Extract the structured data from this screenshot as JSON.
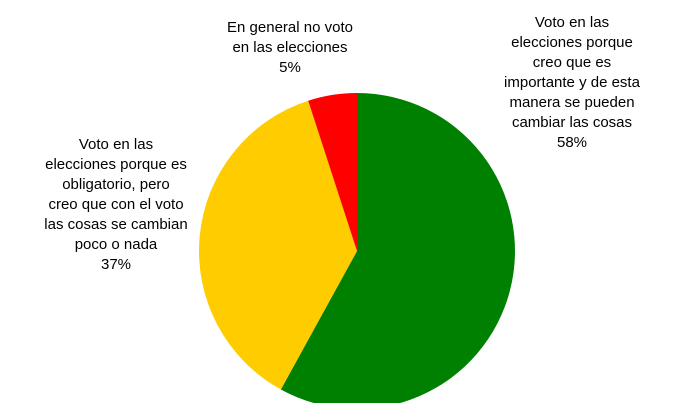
{
  "chart_data": {
    "type": "pie",
    "title": "",
    "start": "top, clockwise",
    "legend": "none",
    "slices": [
      {
        "label_lines": [
          "Voto en las",
          "elecciones porque",
          "creo que es",
          "importante y de esta",
          "manera se pueden",
          "cambiar las cosas"
        ],
        "value": 58,
        "value_label": "58%",
        "color": "#008000"
      },
      {
        "label_lines": [
          "Voto en las",
          "elecciones porque es",
          "obligatorio, pero",
          "creo que con el voto",
          "las cosas se cambian",
          "poco o nada"
        ],
        "value": 37,
        "value_label": "37%",
        "color": "#FFCC00"
      },
      {
        "label_lines": [
          "En general no voto",
          "en las elecciones"
        ],
        "value": 5,
        "value_label": "5%",
        "color": "#FF0000"
      }
    ]
  }
}
